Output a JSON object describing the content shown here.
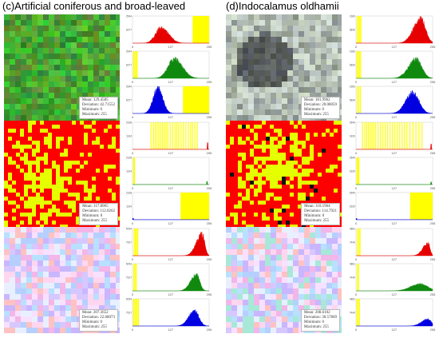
{
  "panels": [
    {
      "title": "(c)Artificial coniferous and broad-leaved",
      "rows": [
        {
          "image": "forest",
          "stats": {
            "mean": "Mean: 129.4585",
            "deviation": "Deviation: 42.71552",
            "minimum": "Minimum: 0",
            "maximum": "Maximum: 255"
          }
        },
        {
          "image": "binary",
          "stats": {
            "mean": "Mean: 117.8905",
            "deviation": "Deviation: 112.0262",
            "minimum": "Minimum: 0",
            "maximum": "Maximum: 255"
          }
        },
        {
          "image": "pastel",
          "stats": {
            "mean": "Mean: 207.3652",
            "deviation": "Deviation: 22.68073",
            "minimum": "Minimum: 0",
            "maximum": "Maximum: 255"
          }
        }
      ]
    },
    {
      "title": "(d)Indocalamus oldhamii",
      "rows": [
        {
          "image": "bamboo",
          "stats": {
            "mean": "Mean: 181.9962",
            "deviation": "Deviation: 20.08059",
            "minimum": "Minimum: 0",
            "maximum": "Maximum: 255"
          }
        },
        {
          "image": "binary",
          "stats": {
            "mean": "Mean: 116.1964",
            "deviation": "Deviation: 114.7921",
            "minimum": "Minimum: 0",
            "maximum": "Maximum: 255"
          }
        },
        {
          "image": "pastel",
          "stats": {
            "mean": "Mean: 208.6102",
            "deviation": "Deviation: 30.57869",
            "minimum": "Minimum: 0",
            "maximum": "Maximum: 255"
          }
        }
      ]
    }
  ],
  "chart_data": [
    {
      "type": "area",
      "panel": "c",
      "row": 1,
      "channel": "red",
      "color": "#e60000",
      "xticks": [
        "0",
        "127",
        "255"
      ],
      "yticks": [
        "2406377",
        "4862544"
      ],
      "ylim": [
        0,
        4862544
      ],
      "shape": {
        "kind": "peak",
        "center": 95,
        "width": 22,
        "height": 0.55,
        "skew": 0.3
      },
      "yellow": {
        "from": 200,
        "to": 255
      }
    },
    {
      "type": "area",
      "panel": "c",
      "row": 1,
      "channel": "green",
      "color": "#0f8a0f",
      "xticks": [
        "0",
        "127",
        "255"
      ],
      "yticks": [
        "2406377",
        "4862544"
      ],
      "ylim": [
        0,
        4862544
      ],
      "shape": {
        "kind": "peak",
        "center": 140,
        "width": 24,
        "height": 0.7,
        "skew": 0.2
      },
      "yellow": {
        "bars": [
          2,
          6,
          10,
          14
        ]
      }
    },
    {
      "type": "area",
      "panel": "c",
      "row": 1,
      "channel": "blue",
      "color": "#0000e0",
      "xticks": [
        "0",
        "127",
        "255"
      ],
      "yticks": [
        "2406377",
        "4862544"
      ],
      "ylim": [
        0,
        4862544
      ],
      "shape": {
        "kind": "peak",
        "center": 85,
        "width": 16,
        "height": 0.92,
        "skew": 0.0
      },
      "yellow": {
        "from": 168,
        "to": 255
      }
    },
    {
      "type": "area",
      "panel": "c",
      "row": 2,
      "channel": "red",
      "color": "#e60000",
      "xticks": [
        "0",
        "127",
        "255"
      ],
      "yticks": [
        "4671164",
        "9342328"
      ],
      "ylim": [
        0,
        9342328
      ],
      "shape": {
        "kind": "spike",
        "at": 250,
        "height": 0.25
      },
      "yellow": {
        "bars": [
          60,
          68,
          74,
          80,
          86,
          92,
          98,
          104,
          110,
          116,
          124,
          132,
          140,
          146,
          152,
          160,
          168,
          176,
          184,
          192,
          198,
          206,
          214
        ]
      }
    },
    {
      "type": "area",
      "panel": "c",
      "row": 2,
      "channel": "green",
      "color": "#0f8a0f",
      "xticks": [
        "0",
        "127",
        "255"
      ],
      "yticks": [
        "4671164",
        "9342328"
      ],
      "ylim": [
        0,
        9342328
      ],
      "shape": {
        "kind": "spike",
        "at": 248,
        "height": 0.12
      },
      "yellow": {
        "bars": [
          2,
          5
        ]
      }
    },
    {
      "type": "area",
      "panel": "c",
      "row": 2,
      "channel": "blue",
      "color": "#0000e0",
      "xticks": [
        "0",
        "127",
        "255"
      ],
      "yticks": [
        "4671164",
        "9342328"
      ],
      "ylim": [
        0,
        9342328
      ],
      "shape": {
        "kind": "spike",
        "at": 2,
        "height": 0.06
      },
      "yellow": {
        "from": 160,
        "to": 255
      }
    },
    {
      "type": "area",
      "panel": "c",
      "row": 3,
      "channel": "red",
      "color": "#e60000",
      "xticks": [
        "0",
        "127",
        "255"
      ],
      "yticks": [
        "3147527",
        "6295054"
      ],
      "ylim": [
        0,
        6295054
      ],
      "shape": {
        "kind": "peak",
        "center": 232,
        "width": 14,
        "height": 0.78,
        "skew": -0.8
      },
      "yellow": {
        "bars": [
          4,
          8,
          12,
          16
        ]
      }
    },
    {
      "type": "area",
      "panel": "c",
      "row": 3,
      "channel": "green",
      "color": "#0f8a0f",
      "xticks": [
        "0",
        "127",
        "255"
      ],
      "yticks": [
        "3147527",
        "6295054"
      ],
      "ylim": [
        0,
        6295054
      ],
      "shape": {
        "kind": "peak",
        "center": 212,
        "width": 15,
        "height": 0.6,
        "skew": -0.5
      },
      "yellow": {
        "bars": [
          3,
          7,
          11
        ]
      }
    },
    {
      "type": "area",
      "panel": "c",
      "row": 3,
      "channel": "blue",
      "color": "#0000e0",
      "xticks": [
        "0",
        "127",
        "255"
      ],
      "yticks": [
        "3147527",
        "6295054"
      ],
      "ylim": [
        0,
        6295054
      ],
      "shape": {
        "kind": "peak",
        "center": 208,
        "width": 17,
        "height": 0.55,
        "skew": -0.4
      },
      "yellow": {
        "bars": [
          2,
          6,
          10,
          14,
          18
        ]
      }
    },
    {
      "type": "area",
      "panel": "d",
      "row": 1,
      "channel": "red",
      "color": "#e60000",
      "xticks": [
        "0",
        "127",
        "255"
      ],
      "yticks": [
        "1515830",
        "3031660"
      ],
      "ylim": [
        0,
        3031660
      ],
      "shape": {
        "kind": "peak",
        "center": 215,
        "width": 20,
        "height": 0.9,
        "skew": -0.4
      },
      "yellow": {
        "bars": [
          3,
          7,
          11,
          15
        ]
      }
    },
    {
      "type": "area",
      "panel": "d",
      "row": 1,
      "channel": "green",
      "color": "#0f8a0f",
      "xticks": [
        "0",
        "127",
        "255"
      ],
      "yticks": [
        "1515830",
        "3031660"
      ],
      "ylim": [
        0,
        3031660
      ],
      "shape": {
        "kind": "peak",
        "center": 200,
        "width": 22,
        "height": 0.7,
        "skew": -0.3
      },
      "yellow": {
        "bars": [
          2,
          6,
          10,
          14
        ]
      }
    },
    {
      "type": "area",
      "panel": "d",
      "row": 1,
      "channel": "blue",
      "color": "#0000e0",
      "xticks": [
        "0",
        "127",
        "255"
      ],
      "yticks": [
        "1515830",
        "3031660"
      ],
      "ylim": [
        0,
        3031660
      ],
      "shape": {
        "kind": "peak",
        "center": 190,
        "width": 22,
        "height": 0.75,
        "skew": -0.2
      },
      "yellow": {
        "bars": [
          3,
          8,
          13
        ]
      }
    },
    {
      "type": "area",
      "panel": "d",
      "row": 2,
      "channel": "red",
      "color": "#e60000",
      "xticks": [
        "0",
        "127",
        "255"
      ],
      "yticks": [
        "5060320",
        "10120640"
      ],
      "ylim": [
        0,
        10120640
      ],
      "shape": {
        "kind": "spike",
        "at": 250,
        "height": 0.2
      },
      "yellow": {
        "bars": [
          20,
          28,
          34,
          40,
          46,
          52,
          58,
          64,
          72,
          80,
          88,
          96,
          104,
          112,
          120,
          128,
          136,
          144,
          152,
          160,
          168,
          178,
          188,
          198,
          208,
          218
        ]
      }
    },
    {
      "type": "area",
      "panel": "d",
      "row": 2,
      "channel": "green",
      "color": "#0f8a0f",
      "xticks": [
        "0",
        "127",
        "255"
      ],
      "yticks": [
        "5060320",
        "10120640"
      ],
      "ylim": [
        0,
        10120640
      ],
      "shape": {
        "kind": "spike",
        "at": 250,
        "height": 0.1
      },
      "yellow": {
        "bars": [
          2,
          5,
          8
        ]
      }
    },
    {
      "type": "area",
      "panel": "d",
      "row": 2,
      "channel": "blue",
      "color": "#0000e0",
      "xticks": [
        "0",
        "127",
        "255"
      ],
      "yticks": [
        "5060320",
        "10120640"
      ],
      "ylim": [
        0,
        10120640
      ],
      "shape": {
        "kind": "spike",
        "at": 2,
        "height": 0.05
      },
      "yellow": {
        "from": 180,
        "to": 255
      }
    },
    {
      "type": "area",
      "panel": "d",
      "row": 3,
      "channel": "red",
      "color": "#e60000",
      "xticks": [
        "0",
        "127",
        "255"
      ],
      "yticks": [
        "4797440",
        "9594881"
      ],
      "ylim": [
        0,
        9594881
      ],
      "shape": {
        "kind": "peak",
        "center": 240,
        "width": 12,
        "height": 0.45,
        "skew": -0.9
      },
      "yellow": {
        "bars": [
          3,
          8,
          12
        ]
      }
    },
    {
      "type": "area",
      "panel": "d",
      "row": 3,
      "channel": "green",
      "color": "#0f8a0f",
      "xticks": [
        "0",
        "127",
        "255"
      ],
      "yticks": [
        "4797440",
        "9594881"
      ],
      "ylim": [
        0,
        9594881
      ],
      "shape": {
        "kind": "peak",
        "center": 215,
        "width": 28,
        "height": 0.25,
        "skew": -0.3
      },
      "yellow": {
        "bars": [
          3,
          7
        ]
      }
    },
    {
      "type": "area",
      "panel": "d",
      "row": 3,
      "channel": "blue",
      "color": "#0000e0",
      "xticks": [
        "0",
        "127",
        "255"
      ],
      "yticks": [
        "4797440",
        "9594881"
      ],
      "ylim": [
        0,
        9594881
      ],
      "shape": {
        "kind": "peak",
        "center": 240,
        "width": 16,
        "height": 0.25,
        "skew": -0.7
      },
      "yellow": {
        "bars": [
          2,
          6,
          10
        ]
      }
    }
  ]
}
